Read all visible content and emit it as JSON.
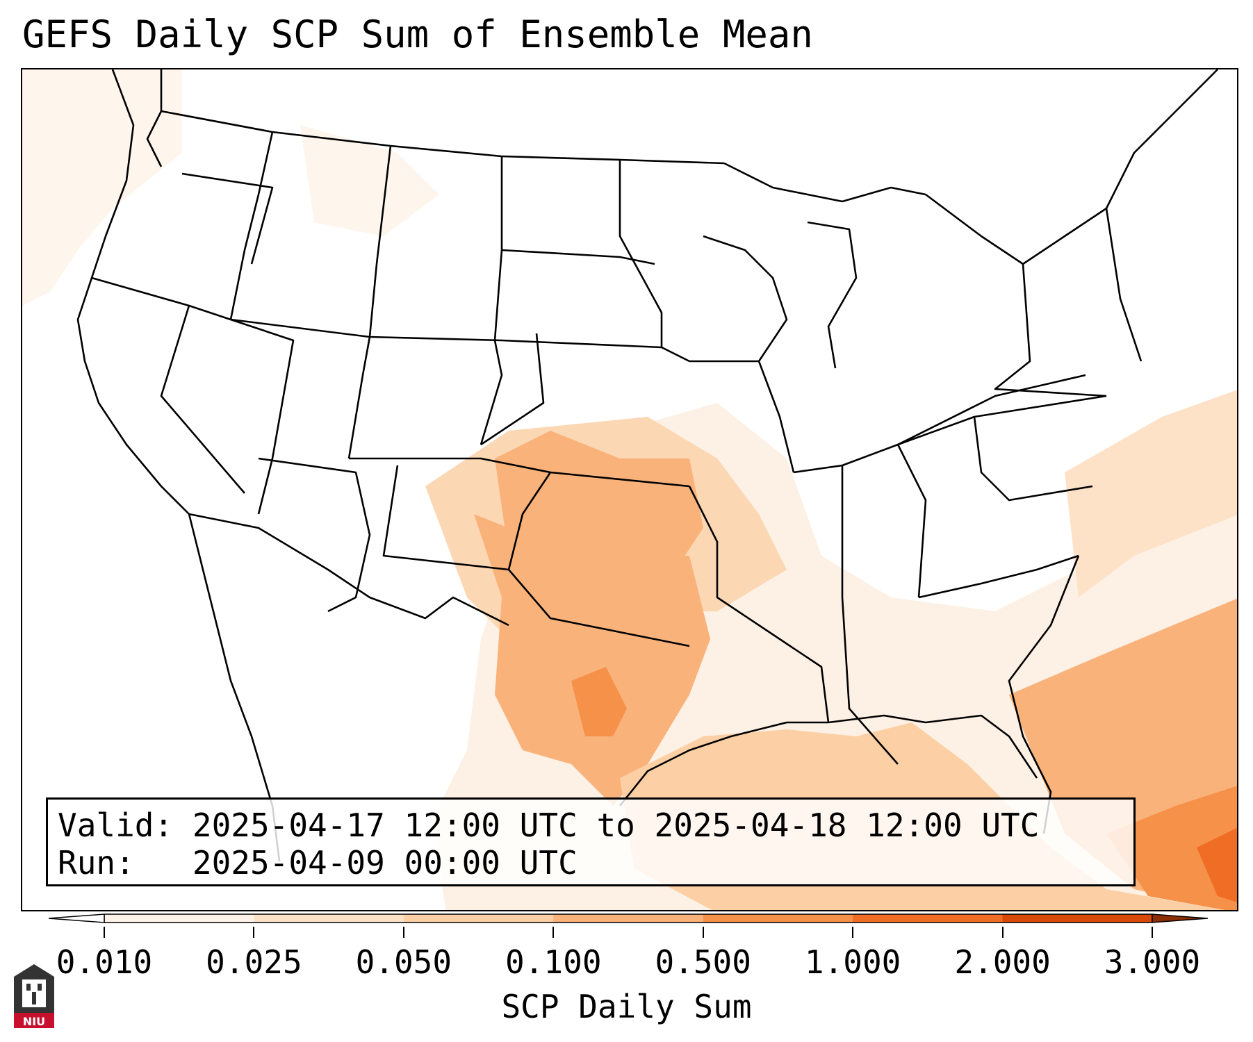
{
  "title": "GEFS Daily SCP Sum of Ensemble Mean",
  "info": {
    "valid_label": "Valid:",
    "valid_value": "2025-04-17 12:00 UTC to 2025-04-18 12:00 UTC",
    "run_label": "Run:",
    "run_value": "2025-04-09 00:00 UTC"
  },
  "colorbar": {
    "title": "SCP Daily Sum",
    "ticks": [
      "0.010",
      "0.025",
      "0.050",
      "0.100",
      "0.500",
      "1.000",
      "2.000",
      "3.000"
    ],
    "colors": [
      "#fef3e8",
      "#fde2c8",
      "#fcd0a4",
      "#f9b27a",
      "#f6914a",
      "#ef6d24",
      "#d94a08",
      "#a63603"
    ],
    "under_color": "#ffffff",
    "over_color": "#8c2d04"
  },
  "map": {
    "field": "SCP daily sum (ensemble mean)",
    "region": "Contiguous United States and Gulf of Mexico",
    "max_region": "Southeast Texas and the western Atlantic"
  },
  "logo": {
    "text": "NIU",
    "icon": "niu-logo-icon"
  }
}
